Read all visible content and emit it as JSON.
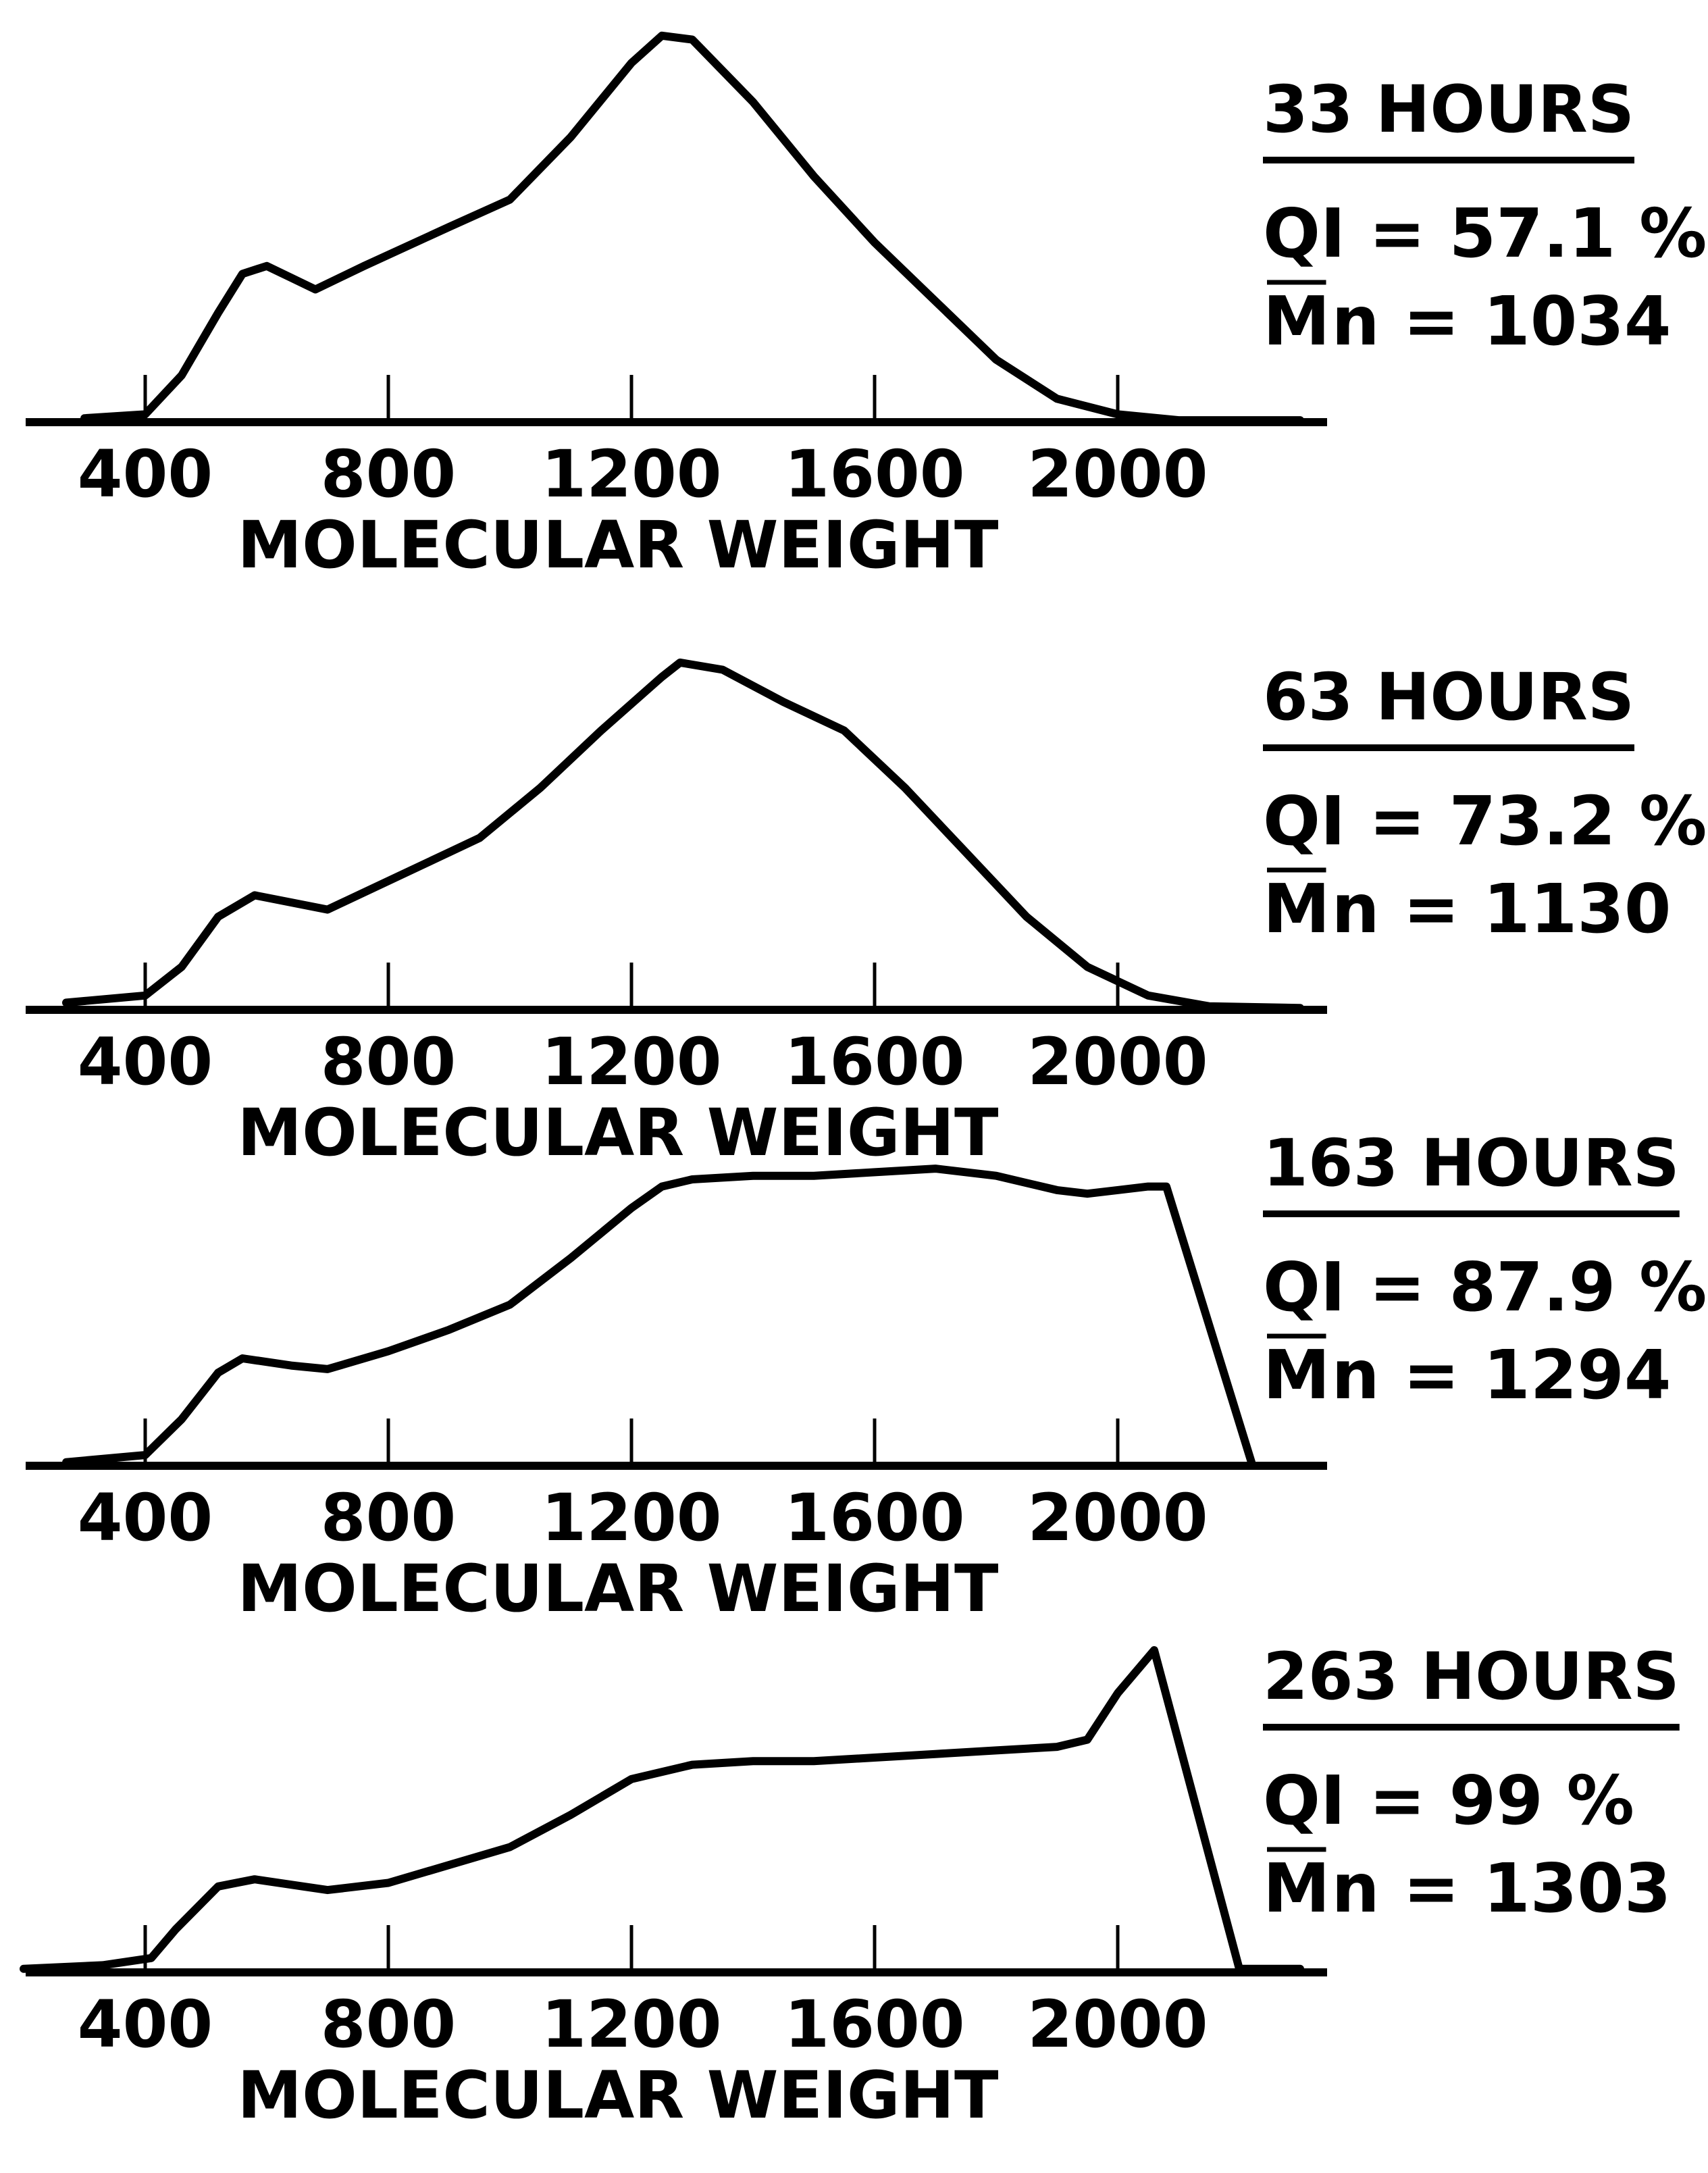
{
  "chart_data": [
    {
      "type": "line",
      "hours_label": "33 HOURS",
      "qi_label": "QI = 57.1 %",
      "mn_symbol": "M",
      "mn_label": "n = 1034",
      "xlabel": "MOLECULAR WEIGHT",
      "x_ticks": [
        "400",
        "800",
        "1200",
        "1600",
        "2000"
      ],
      "xlim": [
        200,
        2300
      ],
      "ylim": [
        0,
        1
      ],
      "series": [
        {
          "points": [
            [
              300,
              0.01
            ],
            [
              400,
              0.02
            ],
            [
              460,
              0.12
            ],
            [
              520,
              0.28
            ],
            [
              560,
              0.38
            ],
            [
              600,
              0.4
            ],
            [
              640,
              0.37
            ],
            [
              680,
              0.34
            ],
            [
              760,
              0.4
            ],
            [
              900,
              0.5
            ],
            [
              1000,
              0.57
            ],
            [
              1100,
              0.73
            ],
            [
              1200,
              0.92
            ],
            [
              1250,
              0.99
            ],
            [
              1300,
              0.98
            ],
            [
              1400,
              0.82
            ],
            [
              1500,
              0.63
            ],
            [
              1600,
              0.46
            ],
            [
              1700,
              0.31
            ],
            [
              1800,
              0.16
            ],
            [
              1900,
              0.06
            ],
            [
              2000,
              0.02
            ],
            [
              2100,
              0.005
            ],
            [
              2300,
              0.005
            ]
          ]
        }
      ]
    },
    {
      "type": "line",
      "hours_label": "63 HOURS",
      "qi_label": "QI = 73.2 %",
      "mn_symbol": "M",
      "mn_label": "n = 1130",
      "xlabel": "MOLECULAR WEIGHT",
      "x_ticks": [
        "400",
        "800",
        "1200",
        "1600",
        "2000"
      ],
      "xlim": [
        200,
        2300
      ],
      "ylim": [
        0,
        1
      ],
      "series": [
        {
          "points": [
            [
              270,
              0.02
            ],
            [
              400,
              0.04
            ],
            [
              460,
              0.12
            ],
            [
              520,
              0.26
            ],
            [
              580,
              0.32
            ],
            [
              640,
              0.3
            ],
            [
              700,
              0.28
            ],
            [
              800,
              0.36
            ],
            [
              900,
              0.44
            ],
            [
              950,
              0.48
            ],
            [
              1050,
              0.62
            ],
            [
              1150,
              0.78
            ],
            [
              1250,
              0.93
            ],
            [
              1280,
              0.97
            ],
            [
              1350,
              0.95
            ],
            [
              1450,
              0.86
            ],
            [
              1550,
              0.78
            ],
            [
              1650,
              0.62
            ],
            [
              1750,
              0.44
            ],
            [
              1850,
              0.26
            ],
            [
              1950,
              0.12
            ],
            [
              2050,
              0.04
            ],
            [
              2150,
              0.01
            ],
            [
              2300,
              0.005
            ]
          ]
        }
      ]
    },
    {
      "type": "line",
      "hours_label": "163 HOURS",
      "qi_label": "QI = 87.9 %",
      "mn_symbol": "M",
      "mn_label": "n = 1294",
      "xlabel": "MOLECULAR WEIGHT",
      "x_ticks": [
        "400",
        "800",
        "1200",
        "1600",
        "2000"
      ],
      "xlim": [
        200,
        2300
      ],
      "ylim": [
        0,
        1
      ],
      "series": [
        {
          "points": [
            [
              270,
              0.01
            ],
            [
              400,
              0.03
            ],
            [
              460,
              0.13
            ],
            [
              520,
              0.26
            ],
            [
              560,
              0.3
            ],
            [
              640,
              0.28
            ],
            [
              700,
              0.27
            ],
            [
              800,
              0.32
            ],
            [
              900,
              0.38
            ],
            [
              1000,
              0.45
            ],
            [
              1100,
              0.58
            ],
            [
              1200,
              0.72
            ],
            [
              1250,
              0.78
            ],
            [
              1300,
              0.8
            ],
            [
              1400,
              0.81
            ],
            [
              1500,
              0.81
            ],
            [
              1600,
              0.82
            ],
            [
              1700,
              0.83
            ],
            [
              1800,
              0.81
            ],
            [
              1900,
              0.77
            ],
            [
              1950,
              0.76
            ],
            [
              2050,
              0.78
            ],
            [
              2080,
              0.78
            ],
            [
              2220,
              0.01
            ]
          ]
        }
      ]
    },
    {
      "type": "line",
      "hours_label": "263 HOURS",
      "qi_label": "QI = 99 %",
      "mn_symbol": "M",
      "mn_label": "n = 1303",
      "xlabel": "MOLECULAR WEIGHT",
      "x_ticks": [
        "400",
        "800",
        "1200",
        "1600",
        "2000"
      ],
      "xlim": [
        200,
        2300
      ],
      "ylim": [
        0,
        1
      ],
      "series": [
        {
          "points": [
            [
              200,
              0.01
            ],
            [
              330,
              0.02
            ],
            [
              410,
              0.04
            ],
            [
              450,
              0.12
            ],
            [
              520,
              0.24
            ],
            [
              580,
              0.26
            ],
            [
              660,
              0.24
            ],
            [
              700,
              0.23
            ],
            [
              800,
              0.25
            ],
            [
              900,
              0.3
            ],
            [
              1000,
              0.35
            ],
            [
              1100,
              0.44
            ],
            [
              1200,
              0.54
            ],
            [
              1300,
              0.58
            ],
            [
              1400,
              0.59
            ],
            [
              1500,
              0.59
            ],
            [
              1600,
              0.6
            ],
            [
              1700,
              0.61
            ],
            [
              1800,
              0.62
            ],
            [
              1900,
              0.63
            ],
            [
              1950,
              0.65
            ],
            [
              2000,
              0.78
            ],
            [
              2060,
              0.9
            ],
            [
              2200,
              0.01
            ],
            [
              2300,
              0.01
            ]
          ]
        }
      ]
    }
  ]
}
